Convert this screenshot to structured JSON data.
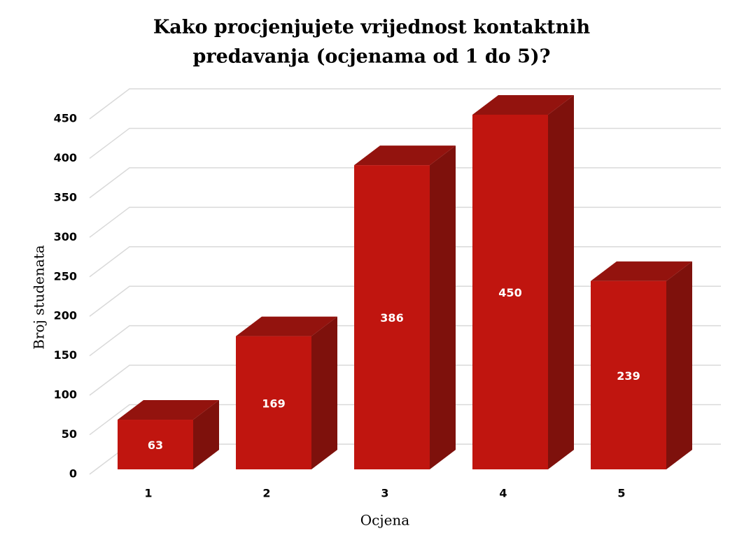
{
  "chart_data": {
    "type": "bar3d",
    "title": [
      "Kako procjenjujete vrijednost kontaktnih",
      "predavanja (ocjenama od 1 do 5)?"
    ],
    "x_label": "Ocjena",
    "y_label": "Broj studenata",
    "categories": [
      "1",
      "2",
      "3",
      "4",
      "5"
    ],
    "values": [
      63,
      169,
      386,
      450,
      239
    ],
    "color": "#c0150f",
    "ylim": [
      0,
      450
    ],
    "yticks": [
      0,
      50,
      100,
      150,
      200,
      250,
      300,
      350,
      400,
      450
    ],
    "grid": true
  }
}
